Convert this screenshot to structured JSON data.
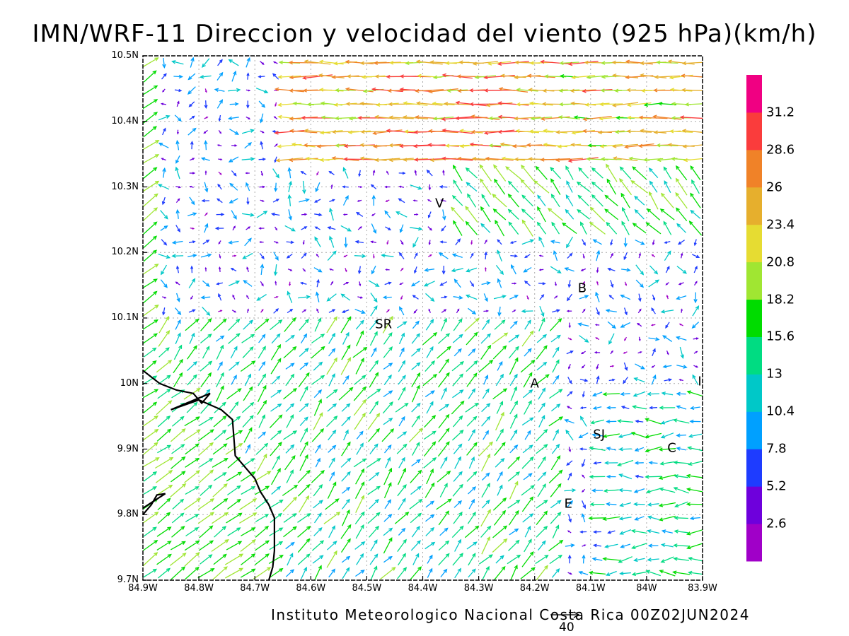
{
  "title": "IMN/WRF-11 Direccion y velocidad del viento (925 hPa)(km/h)",
  "credit": "Instituto Meteorologico Nacional Costa Rica 00Z02JUN2024",
  "reference_vector": {
    "label": "40",
    "value_kmh": 40
  },
  "map": {
    "lon_range": [
      -84.9,
      -83.9
    ],
    "lat_range": [
      9.7,
      10.5
    ],
    "gridlines": "dotted",
    "lat_labels": [
      {
        "text": "10.5N",
        "value": 10.5
      },
      {
        "text": "10.4N",
        "value": 10.4
      },
      {
        "text": "10.3N",
        "value": 10.3
      },
      {
        "text": "10.2N",
        "value": 10.2
      },
      {
        "text": "10.1N",
        "value": 10.1
      },
      {
        "text": "10N",
        "value": 10.0
      },
      {
        "text": "9.9N",
        "value": 9.9
      },
      {
        "text": "9.8N",
        "value": 9.8
      },
      {
        "text": "9.7N",
        "value": 9.7
      }
    ],
    "lon_labels": [
      {
        "text": "84.9W",
        "value": -84.9
      },
      {
        "text": "84.8W",
        "value": -84.8
      },
      {
        "text": "84.7W",
        "value": -84.7
      },
      {
        "text": "84.6W",
        "value": -84.6
      },
      {
        "text": "84.5W",
        "value": -84.5
      },
      {
        "text": "84.4W",
        "value": -84.4
      },
      {
        "text": "84.3W",
        "value": -84.3
      },
      {
        "text": "84.2W",
        "value": -84.2
      },
      {
        "text": "84.1W",
        "value": -84.1
      },
      {
        "text": "84W",
        "value": -84.0
      },
      {
        "text": "83.9W",
        "value": -83.9
      }
    ],
    "places": [
      {
        "label": "V",
        "lon": -84.37,
        "lat": 10.275
      },
      {
        "label": "B",
        "lon": -84.115,
        "lat": 10.145
      },
      {
        "label": "SR",
        "lon": -84.47,
        "lat": 10.09
      },
      {
        "label": "A",
        "lon": -84.2,
        "lat": 10.0
      },
      {
        "label": "SJ",
        "lon": -84.085,
        "lat": 9.922
      },
      {
        "label": "C",
        "lon": -83.955,
        "lat": 9.902
      },
      {
        "label": "I",
        "lon": -83.905,
        "lat": 10.003
      },
      {
        "label": "E",
        "lon": -84.14,
        "lat": 9.816
      }
    ],
    "coastline": [
      [
        -84.9,
        10.02
      ],
      [
        -84.87,
        10.0
      ],
      [
        -84.84,
        9.99
      ],
      [
        -84.81,
        9.985
      ],
      [
        -84.795,
        9.97
      ],
      [
        -84.78,
        9.985
      ],
      [
        -84.85,
        9.96
      ],
      [
        -84.8,
        9.975
      ],
      [
        -84.76,
        9.96
      ],
      [
        -84.74,
        9.945
      ],
      [
        -84.735,
        9.89
      ],
      [
        -84.715,
        9.87
      ],
      [
        -84.7,
        9.855
      ],
      [
        -84.69,
        9.835
      ],
      [
        -84.675,
        9.815
      ],
      [
        -84.665,
        9.795
      ],
      [
        -84.665,
        9.745
      ],
      [
        -84.668,
        9.72
      ],
      [
        -84.675,
        9.7
      ]
    ],
    "coastline_west": [
      [
        -84.9,
        9.8
      ],
      [
        -84.885,
        9.815
      ],
      [
        -84.875,
        9.83
      ],
      [
        -84.86,
        9.832
      ],
      [
        -84.9,
        9.81
      ]
    ]
  },
  "colorbar": {
    "colors": [
      "#a000c8",
      "#6e00dc",
      "#1e3cff",
      "#00a0ff",
      "#00c8c8",
      "#00dc82",
      "#00dc00",
      "#a0e632",
      "#e6dc32",
      "#e6af2d",
      "#f08228",
      "#fa3c3c",
      "#f00082"
    ],
    "labels": [
      "2.6",
      "5.2",
      "7.8",
      "10.4",
      "13",
      "15.6",
      "18.2",
      "20.8",
      "23.4",
      "26",
      "28.6",
      "31.2"
    ],
    "step": 2.6
  }
}
